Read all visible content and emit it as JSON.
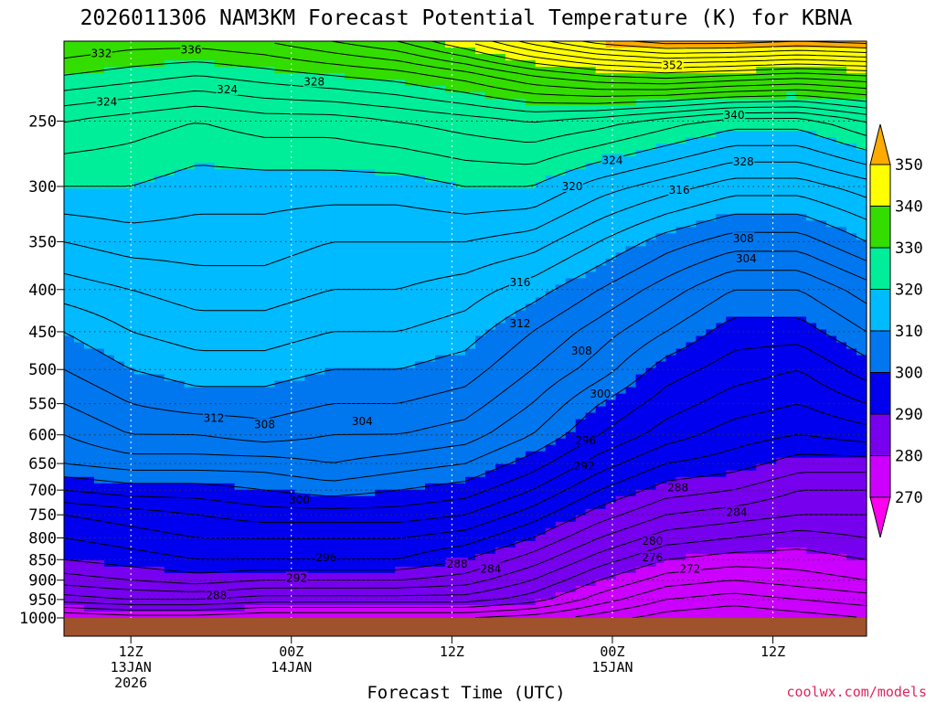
{
  "chart_data": {
    "type": "heatmap",
    "title": "2026011306 NAM3KM Forecast Potential Temperature (K) for KBNA",
    "xlabel": "Forecast Time (UTC)",
    "ylabel": "",
    "credit": "coolwx.com/models",
    "y_axis": {
      "scale": "pressure-log",
      "ylim": [
        1000,
        200
      ],
      "ticks": [
        250,
        300,
        350,
        400,
        450,
        500,
        550,
        600,
        650,
        700,
        750,
        800,
        850,
        900,
        950,
        1000
      ]
    },
    "x_axis": {
      "xlim_hours": [
        7,
        67
      ],
      "ticks": [
        {
          "hour": 12,
          "lines": [
            "12Z",
            "13JAN",
            "2026"
          ]
        },
        {
          "hour": 24,
          "lines": [
            "00Z",
            "14JAN"
          ]
        },
        {
          "hour": 36,
          "lines": [
            "12Z"
          ]
        },
        {
          "hour": 48,
          "lines": [
            "00Z",
            "15JAN"
          ]
        },
        {
          "hour": 60,
          "lines": [
            "12Z"
          ]
        }
      ]
    },
    "colorbar": {
      "labels": [
        350,
        340,
        330,
        320,
        310,
        300,
        290,
        280,
        270
      ],
      "bands": [
        {
          "min": 350,
          "color": "#ffaa00"
        },
        {
          "min": 340,
          "color": "#ffff00"
        },
        {
          "min": 330,
          "color": "#33dd00"
        },
        {
          "min": 320,
          "color": "#00ee99"
        },
        {
          "min": 310,
          "color": "#00bbff"
        },
        {
          "min": 300,
          "color": "#0077ee"
        },
        {
          "min": 290,
          "color": "#0000ee"
        },
        {
          "min": 280,
          "color": "#7700ee"
        },
        {
          "min": 270,
          "color": "#cc00ff"
        },
        {
          "min": 0,
          "color": "#ff00ee"
        }
      ]
    },
    "ground_color": "#a0522d",
    "isotherm_profiles": {
      "hours": [
        7,
        12,
        17,
        22,
        27,
        32,
        37,
        42,
        47,
        52,
        57,
        62,
        67
      ],
      "rows": [
        {
          "p": 1000,
          "theta": [
            276,
            277,
            277,
            276,
            276,
            276,
            276,
            275,
            273,
            271,
            270,
            271,
            272
          ]
        },
        {
          "p": 950,
          "theta": [
            283,
            284,
            284,
            283,
            283,
            283,
            283,
            281,
            277,
            274,
            273,
            274,
            275
          ]
        },
        {
          "p": 900,
          "theta": [
            287,
            288,
            289,
            288,
            288,
            288,
            287,
            284,
            280,
            277,
            276,
            277,
            278
          ]
        },
        {
          "p": 850,
          "theta": [
            290,
            291,
            292,
            292,
            292,
            292,
            290,
            287,
            283,
            280,
            279,
            279,
            280
          ]
        },
        {
          "p": 800,
          "theta": [
            292,
            293,
            294,
            294,
            294,
            294,
            293,
            290,
            286,
            283,
            282,
            281,
            282
          ]
        },
        {
          "p": 750,
          "theta": [
            294,
            295,
            296,
            297,
            297,
            297,
            296,
            293,
            289,
            286,
            285,
            284,
            284
          ]
        },
        {
          "p": 700,
          "theta": [
            298,
            299,
            299,
            300,
            301,
            300,
            299,
            296,
            292,
            289,
            288,
            286,
            286
          ]
        },
        {
          "p": 650,
          "theta": [
            302,
            303,
            303,
            303,
            304,
            303,
            302,
            299,
            295,
            292,
            291,
            289,
            289
          ]
        },
        {
          "p": 600,
          "theta": [
            304,
            306,
            306,
            307,
            306,
            306,
            305,
            302,
            298,
            295,
            293,
            292,
            293
          ]
        },
        {
          "p": 550,
          "theta": [
            306,
            308,
            309,
            309,
            308,
            308,
            307,
            304,
            300,
            297,
            295,
            294,
            296
          ]
        },
        {
          "p": 500,
          "theta": [
            308,
            310,
            311,
            311,
            310,
            310,
            309,
            306,
            303,
            299,
            297,
            296,
            299
          ]
        },
        {
          "p": 450,
          "theta": [
            310,
            312,
            313,
            313,
            312,
            312,
            311,
            308,
            305,
            302,
            299,
            299,
            302
          ]
        },
        {
          "p": 400,
          "theta": [
            313,
            314,
            315,
            315,
            314,
            314,
            313,
            311,
            308,
            305,
            302,
            302,
            305
          ]
        },
        {
          "p": 350,
          "theta": [
            316,
            317,
            317,
            317,
            316,
            316,
            316,
            315,
            312,
            309,
            307,
            307,
            310
          ]
        },
        {
          "p": 300,
          "theta": [
            320,
            320,
            319,
            319,
            319,
            319,
            320,
            320,
            317,
            315,
            313,
            313,
            315
          ]
        },
        {
          "p": 250,
          "theta": [
            324,
            323,
            322,
            323,
            323,
            324,
            325,
            326,
            325,
            323,
            321,
            321,
            324
          ]
        },
        {
          "p": 220,
          "theta": [
            330,
            329,
            328,
            329,
            330,
            331,
            333,
            336,
            338,
            339,
            338,
            337,
            338
          ]
        },
        {
          "p": 200,
          "theta": [
            334,
            333,
            333,
            334,
            336,
            338,
            342,
            347,
            351,
            353,
            353,
            352,
            353
          ]
        }
      ]
    },
    "contour_labels": [
      {
        "text": "332",
        "hour": 9.8,
        "p": 207
      },
      {
        "text": "336",
        "hour": 16.5,
        "p": 205
      },
      {
        "text": "352",
        "hour": 52.5,
        "p": 214
      },
      {
        "text": "324",
        "hour": 10.2,
        "p": 237
      },
      {
        "text": "324",
        "hour": 19.2,
        "p": 229
      },
      {
        "text": "328",
        "hour": 25.7,
        "p": 224
      },
      {
        "text": "340",
        "hour": 57.1,
        "p": 246
      },
      {
        "text": "324",
        "hour": 48.0,
        "p": 279
      },
      {
        "text": "328",
        "hour": 57.8,
        "p": 280
      },
      {
        "text": "320",
        "hour": 45.0,
        "p": 300
      },
      {
        "text": "316",
        "hour": 53.0,
        "p": 303
      },
      {
        "text": "308",
        "hour": 57.8,
        "p": 347
      },
      {
        "text": "304",
        "hour": 58.0,
        "p": 367
      },
      {
        "text": "316",
        "hour": 41.1,
        "p": 392
      },
      {
        "text": "312",
        "hour": 41.1,
        "p": 440
      },
      {
        "text": "308",
        "hour": 45.7,
        "p": 475
      },
      {
        "text": "300",
        "hour": 47.1,
        "p": 535
      },
      {
        "text": "312",
        "hour": 18.2,
        "p": 573
      },
      {
        "text": "308",
        "hour": 22.0,
        "p": 583
      },
      {
        "text": "304",
        "hour": 29.3,
        "p": 578
      },
      {
        "text": "296",
        "hour": 46.0,
        "p": 610
      },
      {
        "text": "292",
        "hour": 45.9,
        "p": 655
      },
      {
        "text": "288",
        "hour": 52.9,
        "p": 695
      },
      {
        "text": "284",
        "hour": 57.3,
        "p": 745
      },
      {
        "text": "300",
        "hour": 24.6,
        "p": 720
      },
      {
        "text": "280",
        "hour": 51.0,
        "p": 807
      },
      {
        "text": "276",
        "hour": 51.0,
        "p": 845
      },
      {
        "text": "272",
        "hour": 53.8,
        "p": 872
      },
      {
        "text": "296",
        "hour": 26.6,
        "p": 845
      },
      {
        "text": "292",
        "hour": 24.4,
        "p": 895
      },
      {
        "text": "288",
        "hour": 36.4,
        "p": 860
      },
      {
        "text": "284",
        "hour": 38.9,
        "p": 872
      },
      {
        "text": "288",
        "hour": 18.4,
        "p": 940
      }
    ]
  }
}
